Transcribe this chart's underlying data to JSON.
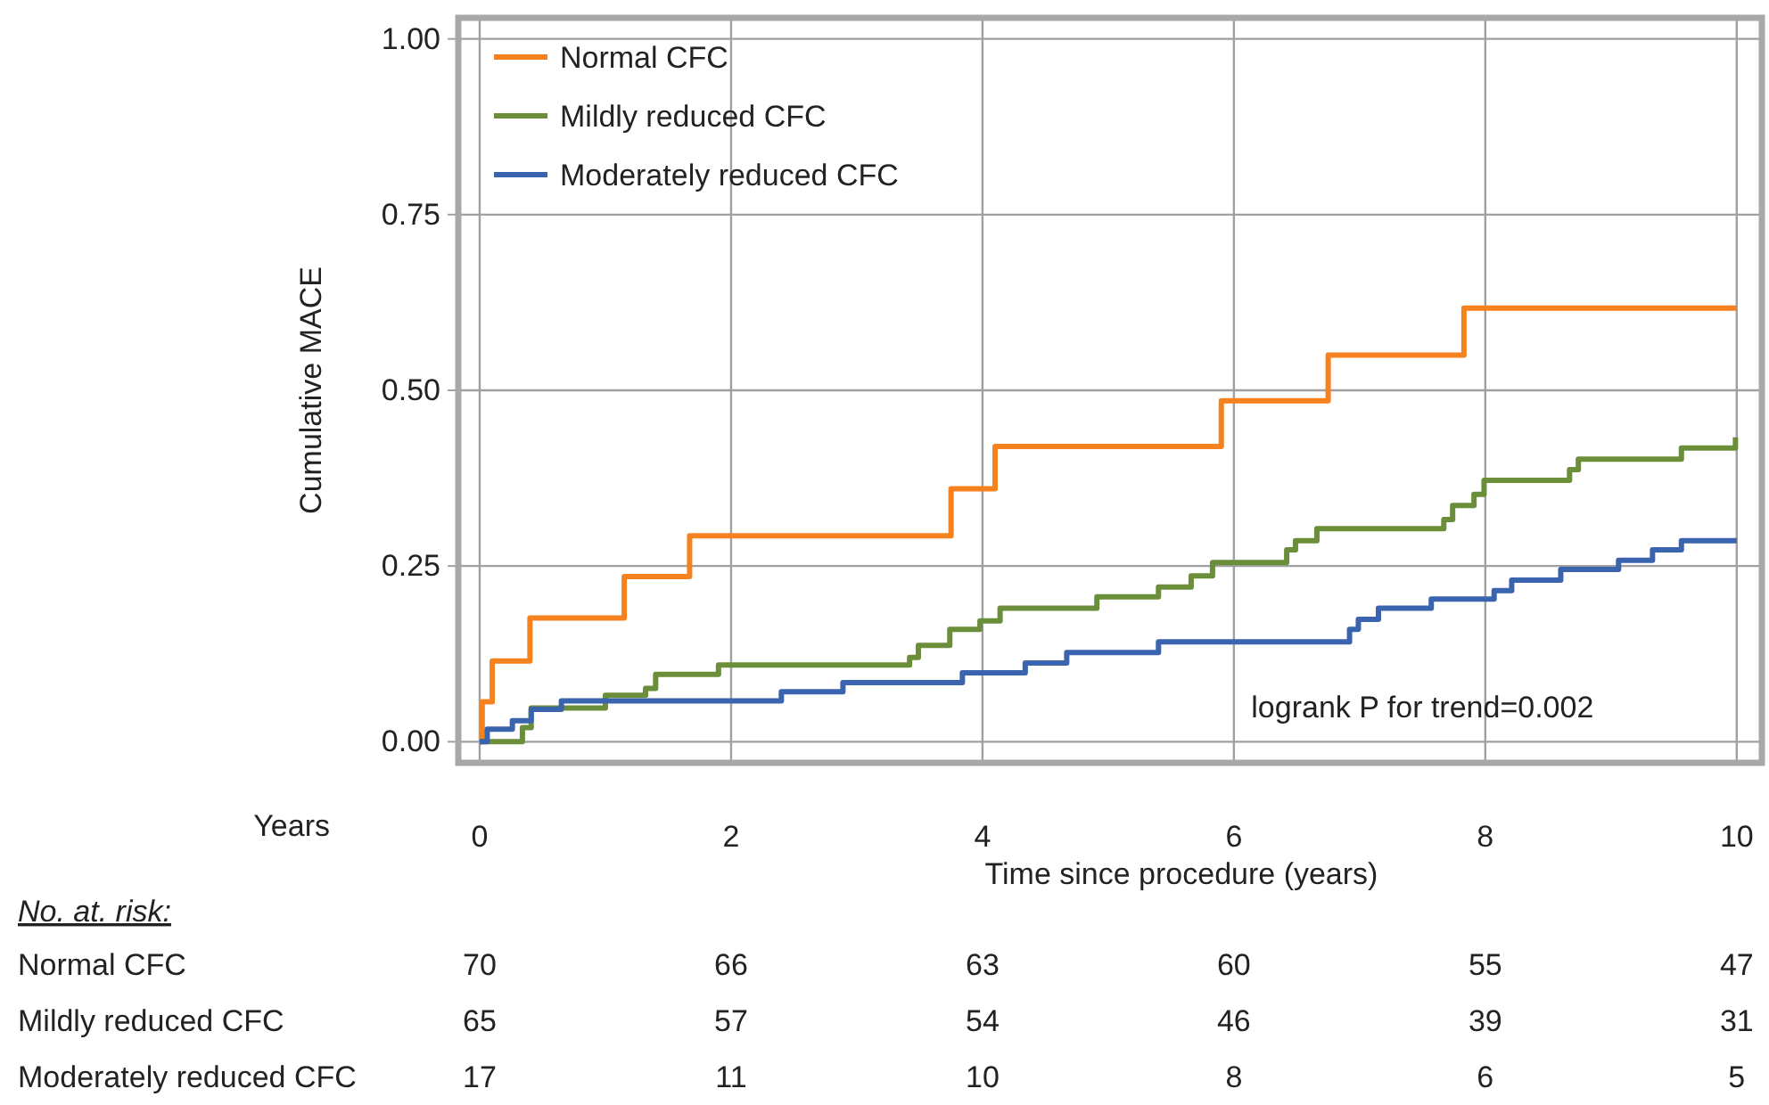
{
  "chart_data": {
    "type": "step",
    "xlabel": "Time since procedure (years)",
    "ylabel": "Cumulative MACE",
    "xlim": [
      -0.17,
      10.2
    ],
    "ylim": [
      -0.03,
      1.03
    ],
    "xticks": [
      0,
      2,
      4,
      6,
      8,
      10
    ],
    "yticks": [
      {
        "value": 0,
        "label": "0.00"
      },
      {
        "value": 0.25,
        "label": "0.25"
      },
      {
        "value": 0.5,
        "label": "0.50"
      },
      {
        "value": 0.75,
        "label": "0.75"
      },
      {
        "value": 1,
        "label": "1.00"
      }
    ],
    "grid": true,
    "legend": "top left",
    "line_style": "solid",
    "marker": "none",
    "series": [
      {
        "name": "Normal CFC",
        "color": "#f5821f",
        "x": [
          0,
          0.02,
          0.1,
          0.4,
          1.15,
          1.67,
          3.75,
          4.1,
          5.9,
          6.75,
          7.83,
          10
        ],
        "values": [
          0,
          0.057,
          0.115,
          0.176,
          0.235,
          0.293,
          0.36,
          0.42,
          0.485,
          0.55,
          0.617,
          0.617
        ]
      },
      {
        "name": "Mildly reduced CFC",
        "color": "#6b8e3a",
        "x": [
          0,
          0.34,
          0.41,
          1.0,
          1.32,
          1.4,
          1.9,
          3.42,
          3.49,
          3.74,
          3.98,
          4.14,
          4.91,
          5.4,
          5.66,
          5.83,
          6.42,
          6.49,
          6.66,
          7.67,
          7.74,
          7.91,
          7.99,
          8.67,
          8.74,
          9.56,
          9.99
        ],
        "values": [
          0,
          0.02,
          0.048,
          0.066,
          0.076,
          0.096,
          0.109,
          0.12,
          0.137,
          0.16,
          0.172,
          0.19,
          0.206,
          0.22,
          0.236,
          0.255,
          0.273,
          0.286,
          0.303,
          0.316,
          0.336,
          0.352,
          0.372,
          0.387,
          0.402,
          0.418,
          0.433
        ]
      },
      {
        "name": "Moderately reduced CFC",
        "color": "#3a64ad",
        "x": [
          0,
          0.06,
          0.26,
          0.41,
          0.65,
          2.4,
          2.89,
          3.84,
          4.34,
          4.67,
          5.4,
          6.92,
          6.99,
          7.15,
          7.57,
          8.07,
          8.21,
          8.6,
          9.06,
          9.33,
          9.56,
          10
        ],
        "values": [
          0,
          0.018,
          0.03,
          0.046,
          0.058,
          0.071,
          0.084,
          0.098,
          0.112,
          0.127,
          0.142,
          0.16,
          0.174,
          0.19,
          0.203,
          0.215,
          0.23,
          0.245,
          0.258,
          0.273,
          0.286,
          0.286
        ]
      }
    ],
    "annotations": [
      "logrank P for trend=0.002",
      "Years",
      "No. at. risk:",
      "Normal CFC",
      "70",
      "66",
      "63",
      "60",
      "55",
      "47",
      "Mildly reduced CFC",
      "65",
      "57",
      "54",
      "46",
      "39",
      "31",
      "Moderately reduced CFC",
      "17",
      "11",
      "10",
      "8",
      "6",
      "5"
    ]
  }
}
